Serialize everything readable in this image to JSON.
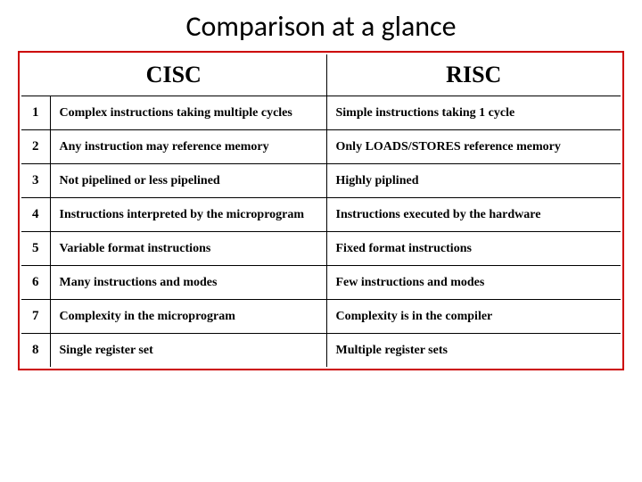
{
  "title": "Comparison at a glance",
  "table": {
    "header": {
      "left": "CISC",
      "right": "RISC"
    },
    "rows": [
      {
        "num": "1",
        "cisc": "Complex instructions taking multiple cycles",
        "risc": "Simple instructions taking 1 cycle"
      },
      {
        "num": "2",
        "cisc": "Any instruction may reference memory",
        "risc": "Only LOADS/STORES reference memory"
      },
      {
        "num": "3",
        "cisc": "Not pipelined or less pipelined",
        "risc": "Highly piplined"
      },
      {
        "num": "4",
        "cisc": "Instructions interpreted by the microprogram",
        "risc": "Instructions executed by the hardware"
      },
      {
        "num": "5",
        "cisc": "Variable format instructions",
        "risc": "Fixed format instructions"
      },
      {
        "num": "6",
        "cisc": "Many instructions and modes",
        "risc": "Few instructions and modes"
      },
      {
        "num": "7",
        "cisc": "Complexity in the microprogram",
        "risc": "Complexity is in the compiler"
      },
      {
        "num": "8",
        "cisc": "Single register set",
        "risc": "Multiple register sets"
      }
    ]
  },
  "colors": {
    "outer_border": "#cc0000",
    "inner_border": "#000000",
    "text": "#000000",
    "background": "#ffffff"
  },
  "fonts": {
    "title_family": "Calibri",
    "body_family": "Times New Roman",
    "title_size": 32,
    "header_size": 26,
    "cell_size": 14
  }
}
